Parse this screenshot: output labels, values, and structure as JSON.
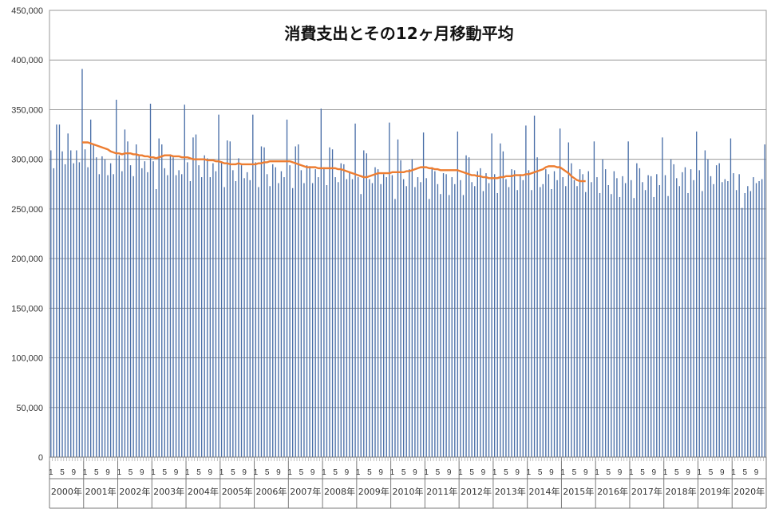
{
  "chart_data": {
    "type": "bar",
    "title": "消費支出とその12ヶ月移動平均",
    "xlabel": "",
    "ylabel": "",
    "ylim": [
      0,
      450000
    ],
    "ytick_values": [
      0,
      50000,
      100000,
      150000,
      200000,
      250000,
      300000,
      350000,
      400000,
      450000
    ],
    "ytick_labels": [
      "0",
      "50,000",
      "100,000",
      "150,000",
      "200,000",
      "250,000",
      "300,000",
      "350,000",
      "400,000",
      "450,000"
    ],
    "month_tick_labels": [
      "1",
      "5",
      "9"
    ],
    "year_labels": [
      "2000年",
      "2001年",
      "2002年",
      "2003年",
      "2004年",
      "2005年",
      "2006年",
      "2007年",
      "2008年",
      "2009年",
      "2010年",
      "2011年",
      "2012年",
      "2013年",
      "2014年",
      "2015年",
      "2016年",
      "2017年",
      "2018年",
      "2019年",
      "2020年"
    ],
    "grid": true,
    "legend": "none",
    "colors": {
      "bars": "#4a6fa8",
      "moving_average": "#ed7d31",
      "grid": "#9a9a9a"
    },
    "series": [
      {
        "type": "bar",
        "values": [
          309000,
          291000,
          335000,
          335000,
          308000,
          295000,
          326000,
          309000,
          296000,
          309000,
          297000,
          391000,
          310000,
          292000,
          340000,
          315000,
          302000,
          285000,
          303000,
          300000,
          284000,
          296000,
          285000,
          360000,
          304000,
          288000,
          330000,
          318000,
          294000,
          283000,
          315000,
          303000,
          291000,
          298000,
          287000,
          356000,
          298000,
          270000,
          321000,
          315000,
          291000,
          284000,
          305000,
          302000,
          284000,
          289000,
          285000,
          355000,
          297000,
          278000,
          322000,
          325000,
          294000,
          282000,
          304000,
          301000,
          282000,
          296000,
          288000,
          345000,
          298000,
          272000,
          319000,
          318000,
          289000,
          278000,
          301000,
          294000,
          281000,
          287000,
          279000,
          345000,
          297000,
          272000,
          313000,
          312000,
          285000,
          273000,
          295000,
          292000,
          276000,
          288000,
          282000,
          340000,
          294000,
          271000,
          313000,
          315000,
          289000,
          276000,
          294000,
          293000,
          276000,
          290000,
          282000,
          351000,
          292000,
          274000,
          312000,
          310000,
          282000,
          277000,
          296000,
          295000,
          280000,
          287000,
          280000,
          336000,
          282000,
          265000,
          309000,
          306000,
          280000,
          276000,
          292000,
          290000,
          275000,
          285000,
          282000,
          337000,
          284000,
          260000,
          320000,
          299000,
          280000,
          273000,
          290000,
          300000,
          272000,
          282000,
          277000,
          327000,
          281000,
          260000,
          292000,
          288000,
          275000,
          265000,
          286000,
          285000,
          264000,
          282000,
          275000,
          328000,
          279000,
          264000,
          304000,
          302000,
          277000,
          273000,
          288000,
          291000,
          268000,
          286000,
          276000,
          326000,
          285000,
          266000,
          316000,
          308000,
          280000,
          272000,
          290000,
          289000,
          269000,
          285000,
          279000,
          334000,
          289000,
          269000,
          344000,
          302000,
          272000,
          275000,
          290000,
          285000,
          270000,
          288000,
          279000,
          331000,
          282000,
          273000,
          317000,
          296000,
          279000,
          273000,
          290000,
          285000,
          267000,
          288000,
          277000,
          318000,
          282000,
          266000,
          300000,
          290000,
          274000,
          265000,
          288000,
          281000,
          262000,
          283000,
          276000,
          318000,
          279000,
          261000,
          296000,
          291000,
          277000,
          269000,
          284000,
          283000,
          262000,
          285000,
          274000,
          322000,
          284000,
          263000,
          300000,
          295000,
          281000,
          273000,
          287000,
          292000,
          266000,
          290000,
          279000,
          328000,
          289000,
          268000,
          309000,
          300000,
          283000,
          275000,
          294000,
          296000,
          277000,
          280000,
          278000,
          321000,
          286000,
          269000,
          285000,
          251000,
          266000,
          273000,
          268000,
          282000,
          276000,
          278000,
          280000,
          315000
        ]
      },
      {
        "type": "line",
        "start_index": 11,
        "values": [
          317000,
          317000,
          317000,
          316000,
          315000,
          314000,
          313000,
          312000,
          311000,
          310000,
          308000,
          307000,
          306000,
          306000,
          305000,
          306000,
          306000,
          306000,
          305000,
          305000,
          304000,
          304000,
          303000,
          303000,
          302000,
          302000,
          301000,
          302000,
          303000,
          304000,
          304000,
          304000,
          303000,
          303000,
          303000,
          302000,
          302000,
          302000,
          301000,
          300000,
          300000,
          300000,
          300000,
          300000,
          299000,
          299000,
          299000,
          298000,
          298000,
          297000,
          296000,
          296000,
          295000,
          295000,
          295000,
          296000,
          295000,
          295000,
          295000,
          295000,
          295000,
          295000,
          296000,
          296000,
          297000,
          297000,
          298000,
          298000,
          298000,
          298000,
          298000,
          298000,
          298000,
          298000,
          297000,
          296000,
          295000,
          294000,
          293000,
          292000,
          292000,
          292000,
          292000,
          291000,
          291000,
          291000,
          291000,
          291000,
          291000,
          291000,
          290000,
          290000,
          289000,
          288000,
          287000,
          286000,
          285000,
          284000,
          283000,
          282000,
          282000,
          283000,
          284000,
          285000,
          286000,
          286000,
          286000,
          286000,
          286000,
          287000,
          287000,
          287000,
          287000,
          287000,
          288000,
          288000,
          289000,
          290000,
          291000,
          292000,
          292000,
          292000,
          291000,
          291000,
          290000,
          290000,
          289000,
          289000,
          289000,
          289000,
          289000,
          289000,
          289000,
          288000,
          287000,
          286000,
          285000,
          284000,
          284000,
          283000,
          283000,
          282000,
          282000,
          281000,
          281000,
          281000,
          281000,
          282000,
          282000,
          283000,
          283000,
          283000,
          284000,
          284000,
          284000,
          284000,
          285000,
          285000,
          286000,
          287000,
          288000,
          289000,
          290000,
          292000,
          293000,
          293000,
          293000,
          292000,
          292000,
          290000,
          288000,
          286000,
          283000,
          281000,
          279000,
          278000,
          278000,
          278000
        ]
      }
    ]
  }
}
